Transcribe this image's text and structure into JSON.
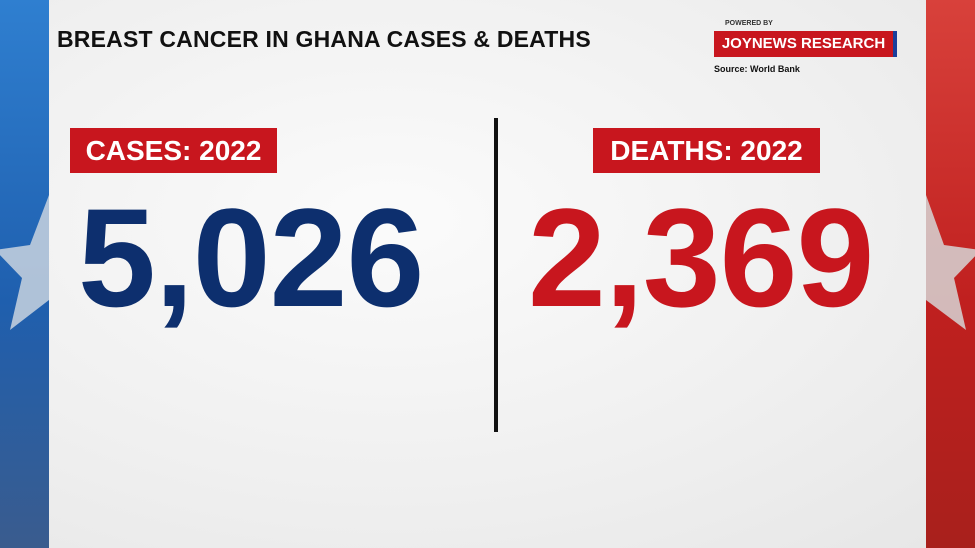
{
  "header": {
    "title": "BREAST CANCER IN GHANA CASES & DEATHS",
    "powered_by": "POWERED BY",
    "brand": "JOYNEWS RESEARCH",
    "source": "Source: World Bank"
  },
  "stats": [
    {
      "label": "CASES: 2022",
      "value": "5,026"
    },
    {
      "label": "DEATHS: 2022",
      "value": "2,369"
    }
  ]
}
